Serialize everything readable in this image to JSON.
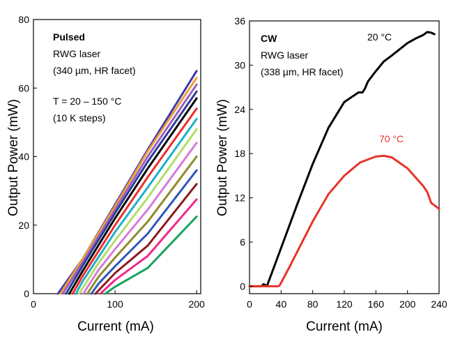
{
  "chart_data": [
    {
      "type": "line",
      "xlabel": "Current (mA)",
      "ylabel": "Output Power  (mW)",
      "xlim": [
        0,
        205
      ],
      "ylim": [
        0,
        80
      ],
      "xticks": [
        0,
        100,
        200
      ],
      "yticks": [
        0,
        20,
        40,
        60,
        80
      ],
      "annotations": [
        "Pulsed",
        "RWG laser",
        "(340 µm, HR facet)",
        "T = 20 – 150 °C",
        "(10 K steps)"
      ],
      "series": [
        {
          "color": "#3a3ab0",
          "x": [
            30,
            60,
            100,
            140,
            200
          ],
          "y": [
            0,
            10,
            26,
            42,
            65
          ]
        },
        {
          "color": "#f0a030",
          "x": [
            33,
            60,
            100,
            140,
            200
          ],
          "y": [
            0,
            10,
            25.5,
            41.5,
            63
          ]
        },
        {
          "color": "#9a5fc6",
          "x": [
            36,
            60,
            100,
            140,
            200
          ],
          "y": [
            0,
            9,
            24.5,
            40,
            61
          ]
        },
        {
          "color": "#2c3e99",
          "x": [
            40,
            60,
            100,
            140,
            200
          ],
          "y": [
            0,
            8,
            23.5,
            38.5,
            59
          ]
        },
        {
          "color": "#000000",
          "x": [
            44,
            60,
            100,
            140,
            200
          ],
          "y": [
            0,
            6.5,
            22,
            36.5,
            57
          ]
        },
        {
          "color": "#ee2d2d",
          "x": [
            48,
            60,
            100,
            140,
            200
          ],
          "y": [
            0,
            5,
            20,
            34,
            54
          ]
        },
        {
          "color": "#1db0c8",
          "x": [
            52,
            60,
            100,
            140,
            200
          ],
          "y": [
            0,
            3.5,
            18,
            31,
            51
          ]
        },
        {
          "color": "#b2dc68",
          "x": [
            56,
            80,
            100,
            140,
            200
          ],
          "y": [
            0,
            9,
            15.5,
            28,
            48
          ]
        },
        {
          "color": "#d87ad6",
          "x": [
            61,
            80,
            100,
            140,
            200
          ],
          "y": [
            0,
            7,
            13,
            24.5,
            44
          ]
        },
        {
          "color": "#8b8b2a",
          "x": [
            66,
            80,
            100,
            140,
            200
          ],
          "y": [
            0,
            5,
            10.5,
            21,
            40
          ]
        },
        {
          "color": "#3056b8",
          "x": [
            71,
            80,
            100,
            140,
            200
          ],
          "y": [
            0,
            3,
            8,
            17.5,
            36
          ]
        },
        {
          "color": "#8b1c1c",
          "x": [
            76,
            100,
            140,
            200
          ],
          "y": [
            0,
            6,
            14,
            32
          ]
        },
        {
          "color": "#ee2a8a",
          "x": [
            82,
            100,
            140,
            200
          ],
          "y": [
            0,
            4,
            11,
            27.5
          ]
        },
        {
          "color": "#16a35e",
          "x": [
            88,
            100,
            140,
            200
          ],
          "y": [
            0,
            2,
            7.5,
            22.5
          ]
        }
      ]
    },
    {
      "type": "line",
      "xlabel": "Current (mA)",
      "ylabel": "Output Power  (mW)",
      "xlim": [
        0,
        240
      ],
      "ylim": [
        -1,
        36
      ],
      "xticks": [
        0,
        40,
        80,
        120,
        160,
        200,
        240
      ],
      "yticks": [
        0,
        6,
        12,
        18,
        24,
        30,
        36
      ],
      "annotations": [
        "CW",
        "RWG laser",
        "(338 µm, HR facet)"
      ],
      "series": [
        {
          "name": "20 °C",
          "color": "#000000",
          "x": [
            0,
            15,
            18,
            22,
            40,
            60,
            80,
            100,
            120,
            138,
            143,
            146,
            150,
            160,
            170,
            180,
            200,
            210,
            220,
            225,
            230,
            234
          ],
          "y": [
            0,
            0,
            0.3,
            0,
            5.2,
            11,
            16.6,
            21.5,
            25,
            26.3,
            26.3,
            26.8,
            27.8,
            29.2,
            30.5,
            31.3,
            33,
            33.6,
            34.1,
            34.5,
            34.4,
            34.2
          ]
        },
        {
          "name": "70 °C",
          "color": "#e8322a",
          "x": [
            0,
            20,
            36,
            38,
            50,
            60,
            80,
            100,
            120,
            140,
            160,
            170,
            180,
            200,
            220,
            225,
            230,
            234,
            240
          ],
          "y": [
            0,
            0,
            0,
            0.1,
            2.5,
            4.6,
            8.8,
            12.5,
            15,
            16.8,
            17.6,
            17.7,
            17.5,
            16,
            13.6,
            12.8,
            11.3,
            11,
            10.5
          ]
        }
      ]
    }
  ]
}
